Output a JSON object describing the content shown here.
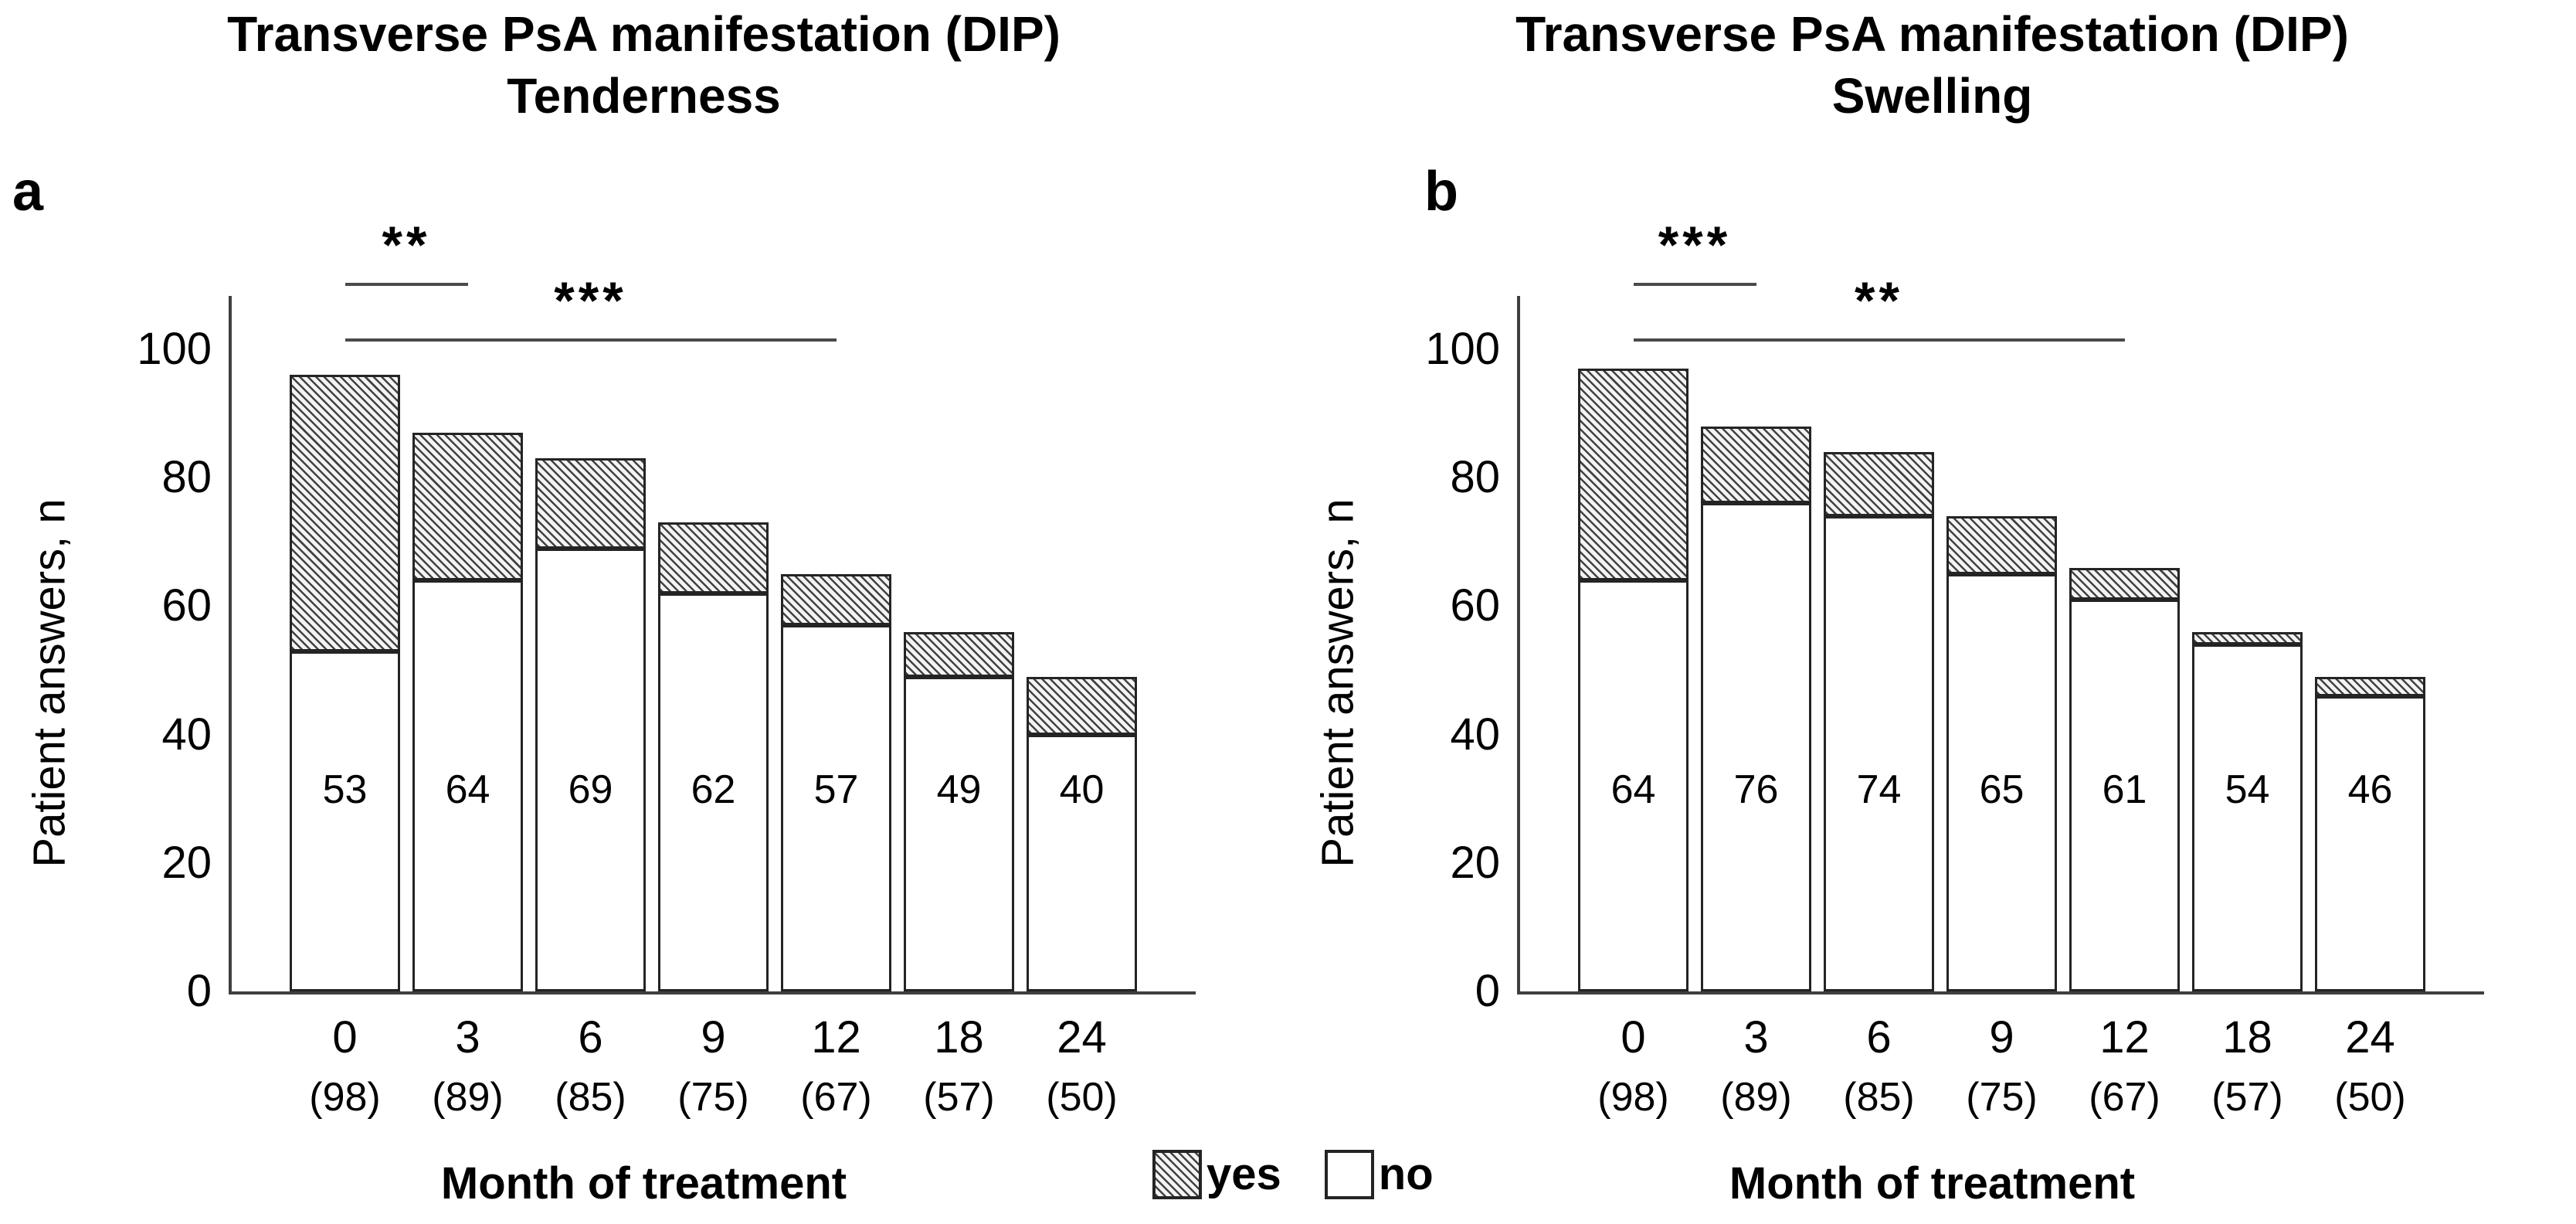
{
  "legend": {
    "items": [
      {
        "label": "yes",
        "swatch": "hatched"
      },
      {
        "label": "no",
        "swatch": "white"
      }
    ],
    "position": "bottom-center"
  },
  "chart_data": [
    {
      "type": "bar",
      "stacked": true,
      "panel_label": "a",
      "title": "Transverse PsA manifestation (DIP)",
      "subtitle": "Tenderness",
      "xlabel": "Month of treatment",
      "ylabel": "Patient answers, n",
      "ylim": [
        0,
        100
      ],
      "y_ticks": [
        0,
        20,
        40,
        60,
        80,
        100
      ],
      "grid": false,
      "categories": [
        "0",
        "3",
        "6",
        "9",
        "12",
        "18",
        "24"
      ],
      "category_n": [
        "(98)",
        "(89)",
        "(85)",
        "(75)",
        "(67)",
        "(57)",
        "(50)"
      ],
      "series": [
        {
          "name": "no",
          "style": "white",
          "values": [
            53,
            64,
            69,
            62,
            57,
            49,
            40
          ]
        },
        {
          "name": "yes",
          "style": "hatched",
          "values": [
            43,
            23,
            14,
            11,
            8,
            7,
            9
          ]
        }
      ],
      "bar_labels": [
        "53",
        "64",
        "69",
        "62",
        "57",
        "49",
        "40"
      ],
      "significance": [
        {
          "label": "**",
          "from": "0",
          "to": "3"
        },
        {
          "label": "***",
          "from": "0",
          "to": "12"
        }
      ]
    },
    {
      "type": "bar",
      "stacked": true,
      "panel_label": "b",
      "title": "Transverse PsA manifestation (DIP)",
      "subtitle": "Swelling",
      "xlabel": "Month of treatment",
      "ylabel": "Patient answers, n",
      "ylim": [
        0,
        100
      ],
      "y_ticks": [
        0,
        20,
        40,
        60,
        80,
        100
      ],
      "grid": false,
      "categories": [
        "0",
        "3",
        "6",
        "9",
        "12",
        "18",
        "24"
      ],
      "category_n": [
        "(98)",
        "(89)",
        "(85)",
        "(75)",
        "(67)",
        "(57)",
        "(50)"
      ],
      "series": [
        {
          "name": "no",
          "style": "white",
          "values": [
            64,
            76,
            74,
            65,
            61,
            54,
            46
          ]
        },
        {
          "name": "yes",
          "style": "hatched",
          "values": [
            33,
            12,
            10,
            9,
            5,
            2,
            3
          ]
        }
      ],
      "bar_labels": [
        "64",
        "76",
        "74",
        "65",
        "61",
        "54",
        "46"
      ],
      "significance": [
        {
          "label": "***",
          "from": "0",
          "to": "3"
        },
        {
          "label": "**",
          "from": "0",
          "to": "12"
        }
      ]
    }
  ]
}
